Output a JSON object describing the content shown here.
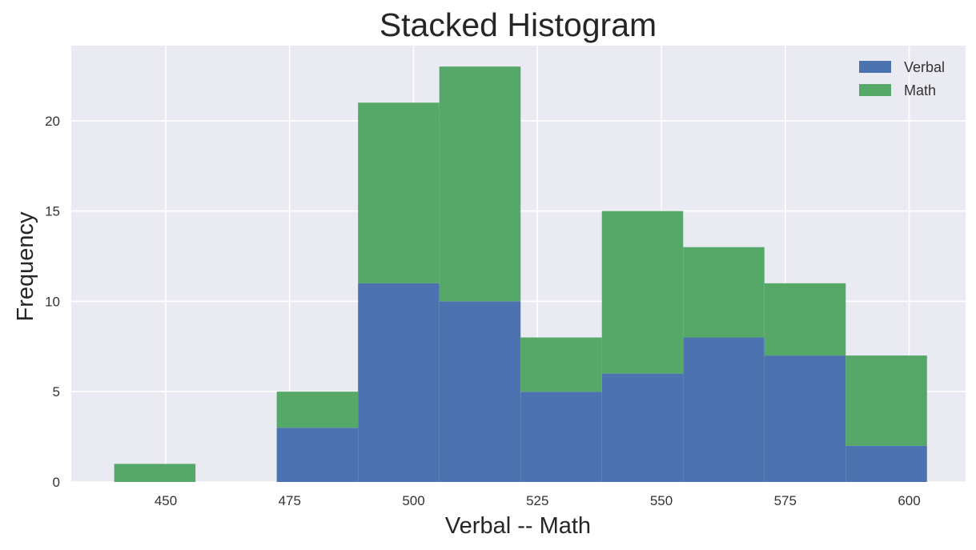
{
  "chart_data": {
    "type": "bar",
    "subtype": "stacked-histogram",
    "title": "Stacked Histogram",
    "xlabel": "Verbal -- Math",
    "ylabel": "Frequency",
    "xlim": [
      432,
      606
    ],
    "ylim": [
      0,
      24
    ],
    "xticks": [
      450,
      475,
      500,
      525,
      550,
      575,
      600
    ],
    "yticks": [
      0,
      5,
      10,
      15,
      20
    ],
    "bin_edges": [
      439.6,
      456.0,
      472.4,
      488.8,
      505.2,
      521.6,
      538.0,
      554.4,
      570.8,
      587.2,
      603.6
    ],
    "series": [
      {
        "name": "Verbal",
        "color": "#4c72b0",
        "values": [
          0,
          0,
          3,
          11,
          10,
          5,
          6,
          8,
          7,
          2
        ]
      },
      {
        "name": "Math",
        "color": "#55a868",
        "values": [
          1,
          0,
          2,
          10,
          13,
          3,
          9,
          5,
          4,
          5
        ]
      }
    ],
    "grid": true,
    "legend_position": "top-right",
    "background": "#eaeaf2"
  }
}
